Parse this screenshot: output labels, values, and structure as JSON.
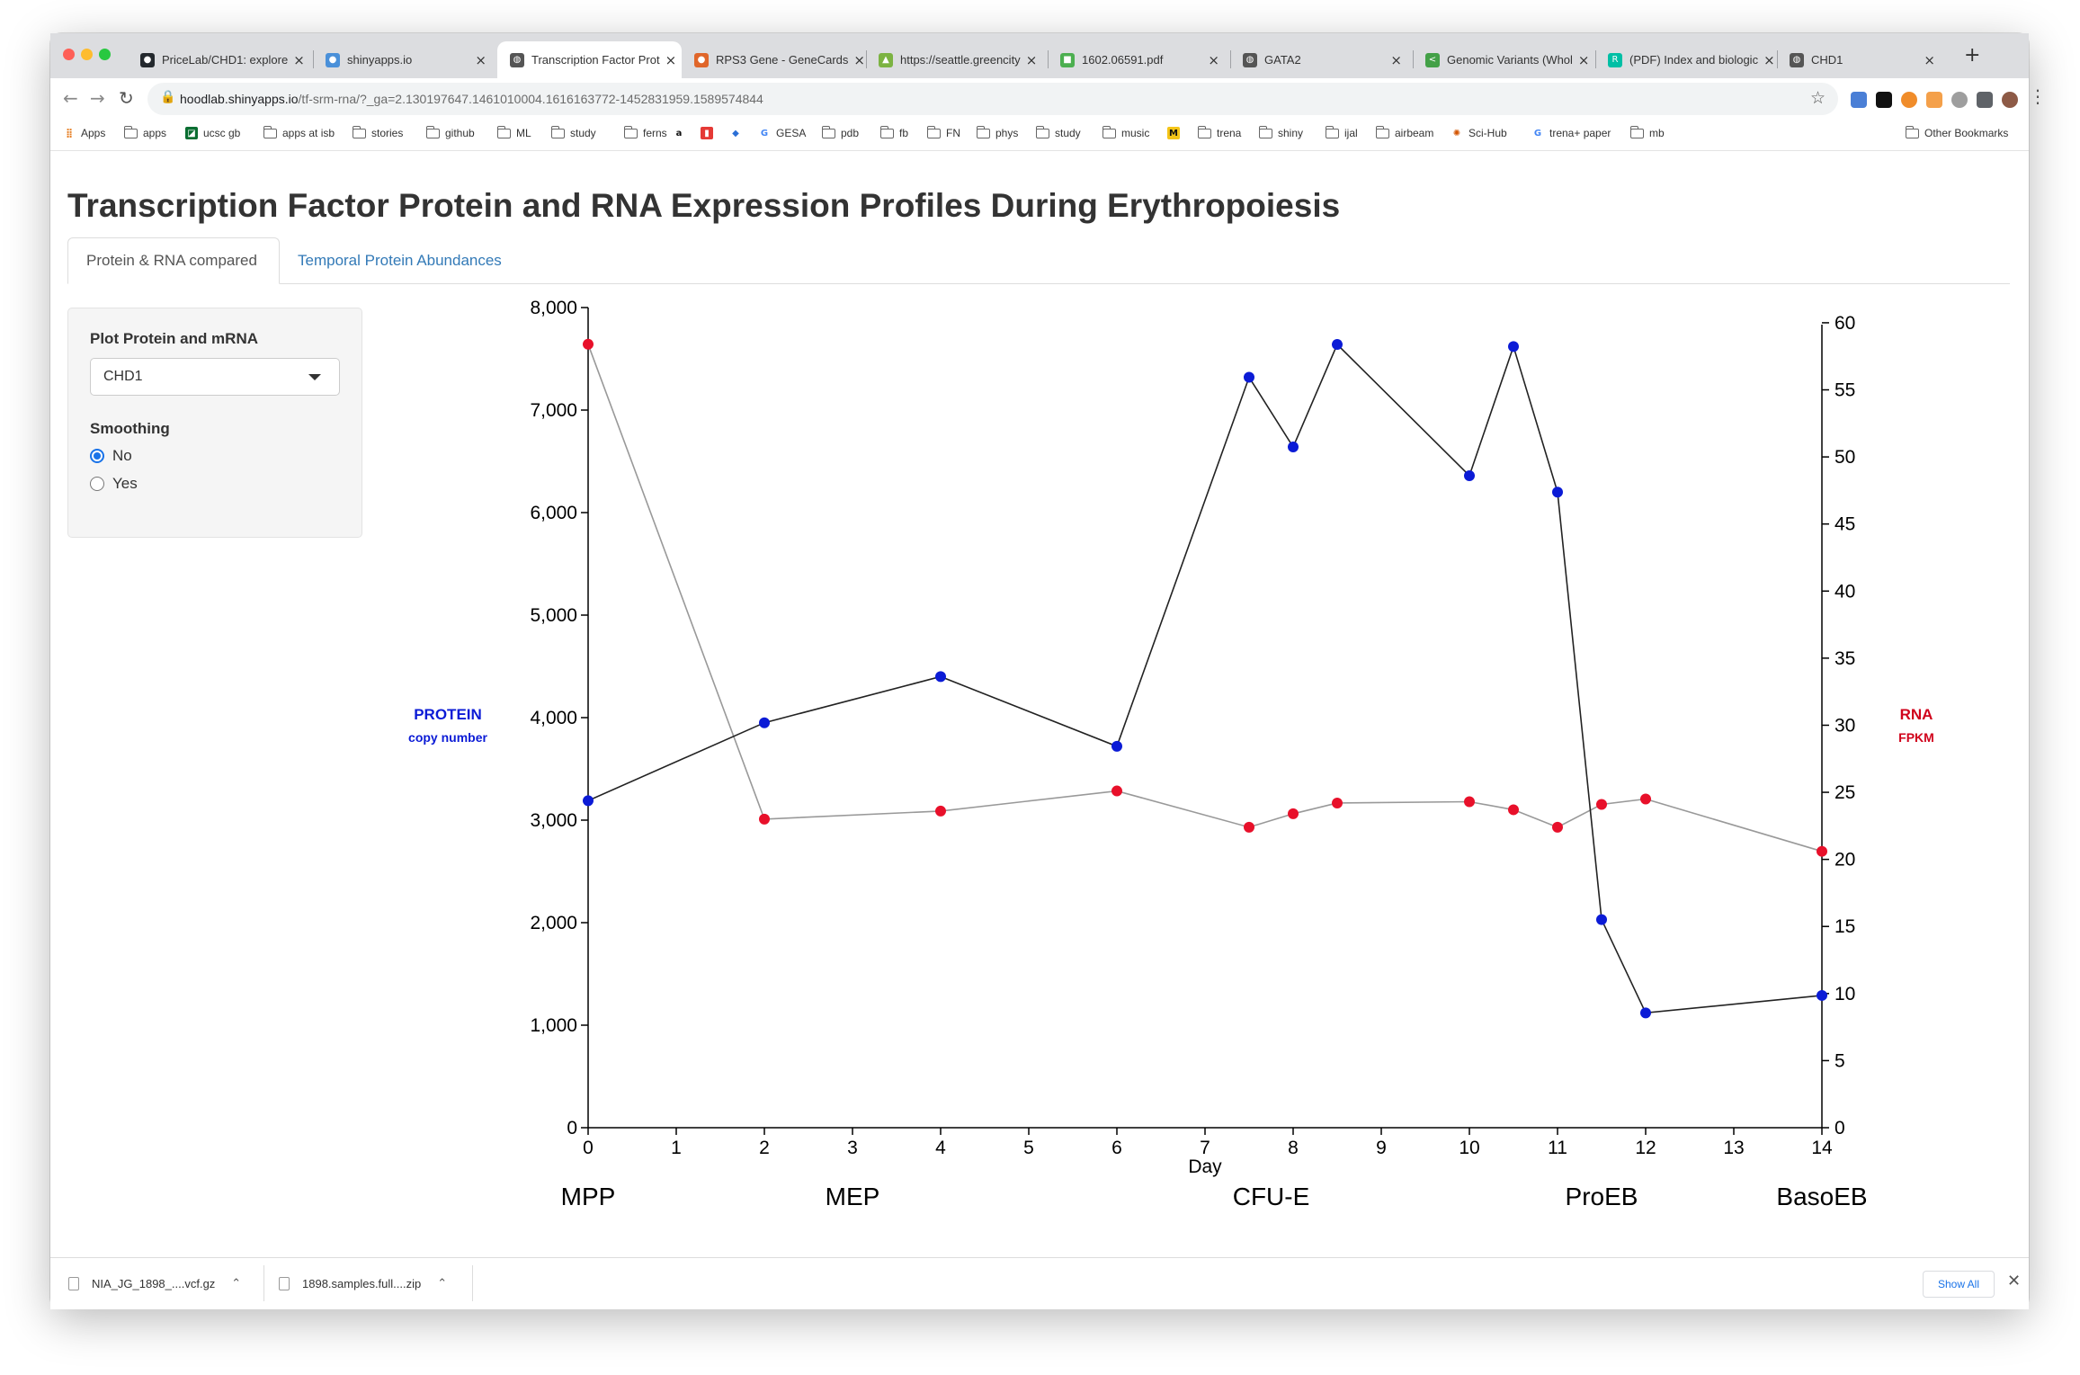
{
  "browser": {
    "tabs": [
      {
        "label": "PriceLab/CHD1: explore",
        "icon": "github-icon",
        "color": "#24292e"
      },
      {
        "label": "shinyapps.io",
        "icon": "shinyapps-icon",
        "color": "#4a90d9"
      },
      {
        "label": "Transcription Factor Prot",
        "icon": "globe-icon",
        "color": "#555555",
        "active": true
      },
      {
        "label": "RPS3 Gene - GeneCards",
        "icon": "genecards-icon",
        "color": "#e0662a"
      },
      {
        "label": "https://seattle.greencity",
        "icon": "greencity-icon",
        "color": "#7cb342"
      },
      {
        "label": "1602.06591.pdf",
        "icon": "arxiv-icon",
        "color": "#4caf50"
      },
      {
        "label": "GATA2",
        "icon": "globe-icon",
        "color": "#555555"
      },
      {
        "label": "Genomic Variants (Whol",
        "icon": "share-icon",
        "color": "#43a047"
      },
      {
        "label": "(PDF) Index and biologic",
        "icon": "researchgate-icon",
        "color": "#00bfa5"
      },
      {
        "label": "CHD1",
        "icon": "globe-icon",
        "color": "#555555"
      }
    ],
    "url_host": "hoodlab.shinyapps.io",
    "url_path": "/tf-srm-rna/?_ga=2.130197647.1461010004.1616163772-1452831959.1589574844",
    "bookmarks": [
      {
        "label": "Apps",
        "kind": "grid"
      },
      {
        "label": "apps",
        "kind": "folder"
      },
      {
        "label": "ucsc gb",
        "kind": "ucsc"
      },
      {
        "label": "apps at isb",
        "kind": "folder"
      },
      {
        "label": "stories",
        "kind": "folder"
      },
      {
        "label": "github",
        "kind": "folder"
      },
      {
        "label": "ML",
        "kind": "folder"
      },
      {
        "label": "study",
        "kind": "folder"
      },
      {
        "label": "ferns",
        "kind": "folder"
      },
      {
        "label": "",
        "kind": "amazon"
      },
      {
        "label": "",
        "kind": "red"
      },
      {
        "label": "",
        "kind": "blue"
      },
      {
        "label": "GESA",
        "kind": "google"
      },
      {
        "label": "pdb",
        "kind": "folder"
      },
      {
        "label": "fb",
        "kind": "folder"
      },
      {
        "label": "FN",
        "kind": "folder"
      },
      {
        "label": "phys",
        "kind": "folder"
      },
      {
        "label": "study",
        "kind": "folder"
      },
      {
        "label": "music",
        "kind": "folder"
      },
      {
        "label": "",
        "kind": "imdb"
      },
      {
        "label": "trena",
        "kind": "folder"
      },
      {
        "label": "shiny",
        "kind": "folder"
      },
      {
        "label": "ijal",
        "kind": "folder"
      },
      {
        "label": "airbeam",
        "kind": "folder"
      },
      {
        "label": "Sci-Hub",
        "kind": "scihub"
      },
      {
        "label": "trena+ paper",
        "kind": "google"
      },
      {
        "label": "mb",
        "kind": "folder"
      }
    ],
    "other_bookmarks": "Other Bookmarks"
  },
  "page": {
    "title": "Transcription Factor Protein and RNA Expression Profiles During Erythropoiesis",
    "tabs": [
      "Protein & RNA compared",
      "Temporal Protein Abundances"
    ],
    "sidebar": {
      "plot_label": "Plot Protein and mRNA",
      "selected_gene": "CHD1",
      "smoothing_label": "Smoothing",
      "options": [
        "No",
        "Yes"
      ],
      "selected_option": "No"
    }
  },
  "chart_data": {
    "type": "line",
    "xlabel": "Day",
    "x_ticks": [
      0,
      1,
      2,
      3,
      4,
      5,
      6,
      7,
      8,
      9,
      10,
      11,
      12,
      13,
      14
    ],
    "xlim": [
      0,
      14
    ],
    "y_left": {
      "label": "PROTEIN",
      "sublabel": "copy number",
      "color": "#0b1bd6",
      "lim": [
        0,
        8000
      ],
      "ticks": [
        0,
        1000,
        2000,
        3000,
        4000,
        5000,
        6000,
        7000,
        8000
      ]
    },
    "y_right": {
      "label": "RNA",
      "sublabel": "FPKM",
      "color": "#d0021b",
      "lim": [
        0,
        61
      ],
      "ticks": [
        0,
        5,
        10,
        15,
        20,
        25,
        30,
        35,
        40,
        45,
        50,
        55,
        60
      ]
    },
    "stages": [
      {
        "label": "MPP",
        "x": 0
      },
      {
        "label": "MEP",
        "x": 3
      },
      {
        "label": "CFU-E",
        "x": 7.75
      },
      {
        "label": "ProEB",
        "x": 11.5
      },
      {
        "label": "BasoEB",
        "x": 14
      }
    ],
    "series": [
      {
        "name": "PROTEIN",
        "axis": "left",
        "color": "#0b1bd6",
        "line_color": "#222222",
        "x": [
          0,
          2,
          4,
          6,
          7.5,
          8,
          8.5,
          10,
          10.5,
          11,
          11.5,
          12,
          14
        ],
        "y": [
          3190,
          3950,
          4400,
          3720,
          7320,
          6640,
          7640,
          6360,
          7620,
          6200,
          2030,
          1120,
          1290
        ]
      },
      {
        "name": "RNA",
        "axis": "right",
        "color": "#e8102a",
        "line_color": "#999999",
        "x": [
          0,
          2,
          4,
          6,
          7.5,
          8,
          8.5,
          10,
          10.5,
          11,
          11.5,
          12,
          14
        ],
        "y": [
          58.4,
          23.0,
          23.6,
          25.1,
          22.4,
          23.4,
          24.2,
          24.3,
          23.7,
          22.4,
          24.1,
          24.5,
          20.6
        ]
      }
    ]
  },
  "downloads": {
    "items": [
      "NIA_JG_1898_....vcf.gz",
      "1898.samples.full....zip"
    ],
    "show_all": "Show All"
  }
}
